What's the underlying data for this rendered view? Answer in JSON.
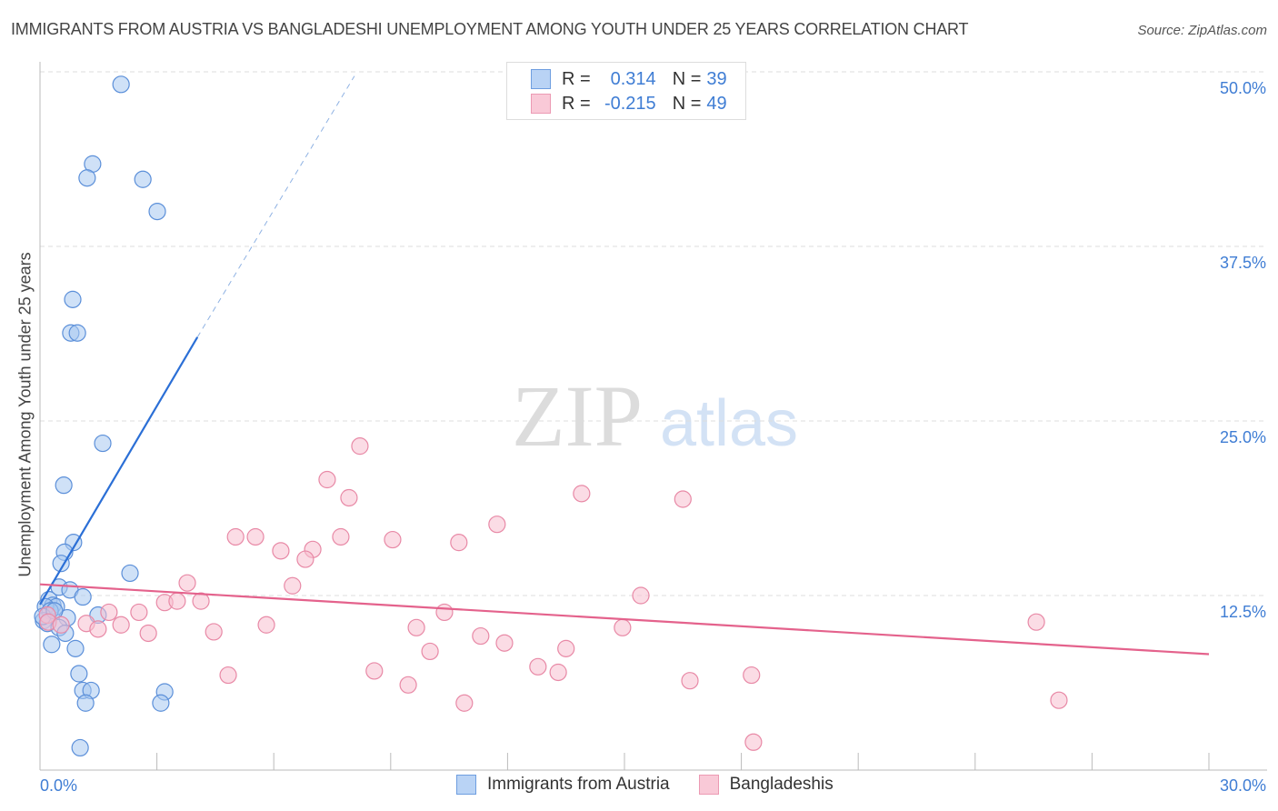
{
  "chart_data": {
    "type": "scatter",
    "title": "IMMIGRANTS FROM AUSTRIA VS BANGLADESHI UNEMPLOYMENT AMONG YOUTH UNDER 25 YEARS CORRELATION CHART",
    "source": "Source: ZipAtlas.com",
    "ylabel": "Unemployment Among Youth under 25 years",
    "xlim": [
      0,
      30
    ],
    "ylim": [
      0,
      50
    ],
    "x_tick_labels": {
      "min": "0.0%",
      "max": "30.0%"
    },
    "y_ticks": [
      {
        "value": 50,
        "label": "50.0%"
      },
      {
        "value": 37.5,
        "label": "37.5%"
      },
      {
        "value": 25,
        "label": "25.0%"
      },
      {
        "value": 12.5,
        "label": "12.5%"
      }
    ],
    "watermark": "ZIPatlas",
    "legend": [
      {
        "r_label": "R =",
        "r": "0.314",
        "n_label": "N =",
        "n": "39"
      },
      {
        "r_label": "R =",
        "r": "-0.215",
        "n_label": "N =",
        "n": "49"
      }
    ],
    "series": [
      {
        "name": "Immigrants from Austria",
        "fill": "#a8c8f0",
        "stroke": "#5b8fd9",
        "line": "#2b6fd6",
        "trend": {
          "solid": [
            [
              0,
              11.85
            ],
            [
              4.04,
              31.0
            ]
          ],
          "dashed": [
            [
              4.04,
              31.0
            ],
            [
              8.07,
              49.7
            ]
          ]
        },
        "points": [
          [
            2.08,
            49.1
          ],
          [
            1.35,
            43.4
          ],
          [
            1.21,
            42.4
          ],
          [
            2.64,
            42.3
          ],
          [
            3.01,
            40.0
          ],
          [
            0.84,
            33.7
          ],
          [
            0.79,
            31.3
          ],
          [
            0.96,
            31.3
          ],
          [
            1.61,
            23.4
          ],
          [
            0.61,
            20.4
          ],
          [
            0.86,
            16.3
          ],
          [
            0.63,
            15.6
          ],
          [
            0.54,
            14.8
          ],
          [
            2.31,
            14.1
          ],
          [
            0.49,
            13.1
          ],
          [
            0.77,
            12.9
          ],
          [
            1.1,
            12.4
          ],
          [
            0.23,
            12.2
          ],
          [
            0.33,
            11.8
          ],
          [
            0.42,
            11.7
          ],
          [
            0.14,
            11.7
          ],
          [
            0.26,
            11.4
          ],
          [
            1.49,
            11.1
          ],
          [
            0.7,
            10.9
          ],
          [
            0.09,
            10.7
          ],
          [
            0.19,
            10.5
          ],
          [
            0.49,
            10.2
          ],
          [
            0.65,
            9.8
          ],
          [
            0.3,
            9.0
          ],
          [
            0.91,
            8.7
          ],
          [
            1.0,
            6.9
          ],
          [
            1.1,
            5.7
          ],
          [
            1.31,
            5.7
          ],
          [
            1.17,
            4.8
          ],
          [
            3.2,
            5.6
          ],
          [
            3.1,
            4.8
          ],
          [
            1.03,
            1.6
          ],
          [
            0.07,
            11.0
          ],
          [
            0.37,
            11.4
          ]
        ]
      },
      {
        "name": "Bangladeshis",
        "fill": "#f7bfd0",
        "stroke": "#e889a6",
        "line": "#e4628c",
        "trend": {
          "solid": [
            [
              0,
              13.3
            ],
            [
              30,
              8.3
            ]
          ]
        },
        "points": [
          [
            8.21,
            23.2
          ],
          [
            7.37,
            20.8
          ],
          [
            7.93,
            19.5
          ],
          [
            13.9,
            19.8
          ],
          [
            16.5,
            19.4
          ],
          [
            11.73,
            17.6
          ],
          [
            5.02,
            16.7
          ],
          [
            5.53,
            16.7
          ],
          [
            7.72,
            16.7
          ],
          [
            9.05,
            16.5
          ],
          [
            10.75,
            16.3
          ],
          [
            6.18,
            15.7
          ],
          [
            7.0,
            15.8
          ],
          [
            6.81,
            15.1
          ],
          [
            3.78,
            13.4
          ],
          [
            6.48,
            13.2
          ],
          [
            15.42,
            12.5
          ],
          [
            3.2,
            12.0
          ],
          [
            3.52,
            12.1
          ],
          [
            4.13,
            12.1
          ],
          [
            1.77,
            11.3
          ],
          [
            2.54,
            11.3
          ],
          [
            10.38,
            11.3
          ],
          [
            1.19,
            10.5
          ],
          [
            2.08,
            10.4
          ],
          [
            1.49,
            10.1
          ],
          [
            5.81,
            10.4
          ],
          [
            25.57,
            10.6
          ],
          [
            9.66,
            10.2
          ],
          [
            14.95,
            10.2
          ],
          [
            2.78,
            9.8
          ],
          [
            4.46,
            9.9
          ],
          [
            11.31,
            9.6
          ],
          [
            11.92,
            9.1
          ],
          [
            10.01,
            8.5
          ],
          [
            13.5,
            8.7
          ],
          [
            0.19,
            11.1
          ],
          [
            0.21,
            10.6
          ],
          [
            0.54,
            10.4
          ],
          [
            4.83,
            6.8
          ],
          [
            8.58,
            7.1
          ],
          [
            12.78,
            7.4
          ],
          [
            13.3,
            7.0
          ],
          [
            9.45,
            6.1
          ],
          [
            16.68,
            6.4
          ],
          [
            18.26,
            6.8
          ],
          [
            10.89,
            4.8
          ],
          [
            26.15,
            5.0
          ],
          [
            18.31,
            2.0
          ]
        ]
      }
    ]
  }
}
